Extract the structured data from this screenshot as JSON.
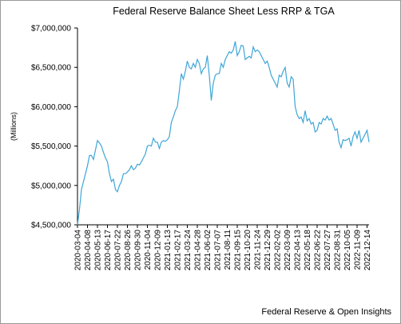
{
  "chart_data": {
    "type": "line",
    "title": "Federal Reserve Balance Sheet Less RRP & TGA",
    "y_label": "(Millions)",
    "source": "Federal Reserve & Open Insights",
    "categories": [
      "2020-03-04",
      null,
      null,
      null,
      null,
      "2020-04-08",
      null,
      null,
      null,
      null,
      "2020-05-13",
      null,
      null,
      null,
      null,
      "2020-06-17",
      null,
      null,
      null,
      null,
      "2020-07-22",
      null,
      null,
      null,
      null,
      "2020-08-26",
      null,
      null,
      null,
      null,
      "2020-09-30",
      null,
      null,
      null,
      null,
      "2020-11-04",
      null,
      null,
      null,
      null,
      "2020-12-09",
      null,
      null,
      null,
      null,
      "2021-01-13",
      null,
      null,
      null,
      null,
      "2021-02-17",
      null,
      null,
      null,
      null,
      "2021-03-24",
      null,
      null,
      null,
      null,
      "2021-04-28",
      null,
      null,
      null,
      null,
      "2021-06-02",
      null,
      null,
      null,
      null,
      "2021-07-07",
      null,
      null,
      null,
      null,
      "2021-08-11",
      null,
      null,
      null,
      null,
      "2021-09-15",
      null,
      null,
      null,
      null,
      "2021-10-20",
      null,
      null,
      null,
      null,
      "2021-11-24",
      null,
      null,
      null,
      null,
      "2021-12-29",
      null,
      null,
      null,
      null,
      "2022-02-02",
      null,
      null,
      null,
      null,
      "2022-03-09",
      null,
      null,
      null,
      null,
      "2022-04-13",
      null,
      null,
      null,
      null,
      "2022-05-18",
      null,
      null,
      null,
      null,
      "2022-06-22",
      null,
      null,
      null,
      null,
      "2022-07-27",
      null,
      null,
      null,
      null,
      "2022-08-31",
      null,
      null,
      null,
      null,
      "2022-10-05",
      null,
      null,
      null,
      null,
      "2022-11-09",
      null,
      null,
      null,
      null,
      "2022-12-14",
      null
    ],
    "series": [
      {
        "color": "#3ea6d8",
        "values": [
          4500000,
          4700000,
          4950000,
          5050000,
          5150000,
          5250000,
          5380000,
          5380000,
          5330000,
          5450000,
          5570000,
          5540000,
          5500000,
          5420000,
          5350000,
          5300000,
          5150000,
          5050000,
          5080000,
          4950000,
          4920000,
          5000000,
          5050000,
          5150000,
          5150000,
          5170000,
          5200000,
          5250000,
          5200000,
          5220000,
          5270000,
          5260000,
          5300000,
          5350000,
          5400000,
          5500000,
          5510000,
          5500000,
          5600000,
          5550000,
          5550000,
          5470000,
          5550000,
          5570000,
          5560000,
          5580000,
          5620000,
          5800000,
          5870000,
          5950000,
          6000000,
          6200000,
          6420000,
          6350000,
          6450000,
          6580000,
          6500000,
          6480000,
          6550000,
          6500000,
          6600000,
          6550000,
          6420000,
          6480000,
          6500000,
          6650000,
          6400000,
          6080000,
          6300000,
          6400000,
          6420000,
          6420000,
          6550000,
          6500000,
          6600000,
          6650000,
          6700000,
          6680000,
          6720000,
          6830000,
          6650000,
          6700000,
          6780000,
          6770000,
          6600000,
          6620000,
          6640000,
          6620000,
          6760000,
          6700000,
          6720000,
          6700000,
          6650000,
          6600000,
          6550000,
          6580000,
          6500000,
          6400000,
          6350000,
          6300000,
          6250000,
          6400000,
          6380000,
          6450000,
          6500000,
          6300000,
          6250000,
          6380000,
          6350000,
          6000000,
          5900000,
          5850000,
          5870000,
          5800000,
          5950000,
          5820000,
          5850000,
          5780000,
          5800000,
          5680000,
          5700000,
          5800000,
          5780000,
          5850000,
          5830000,
          5880000,
          5830000,
          5850000,
          5780000,
          5700000,
          5720000,
          5550000,
          5480000,
          5580000,
          5570000,
          5580000,
          5600000,
          5500000,
          5620000,
          5680000,
          5600000,
          5700000,
          5550000,
          5600000,
          5650000,
          5700000,
          5550000
        ]
      }
    ],
    "ylim": [
      4500000,
      7000000
    ],
    "yticks": [
      {
        "value": 4500000,
        "label": "$4,500,000"
      },
      {
        "value": 5000000,
        "label": "$5,000,000"
      },
      {
        "value": 5500000,
        "label": "$5,500,000"
      },
      {
        "value": 6000000,
        "label": "$6,000,000"
      },
      {
        "value": 6500000,
        "label": "$6,500,000"
      },
      {
        "value": 7000000,
        "label": "$7,000,000"
      }
    ],
    "grid": false
  }
}
